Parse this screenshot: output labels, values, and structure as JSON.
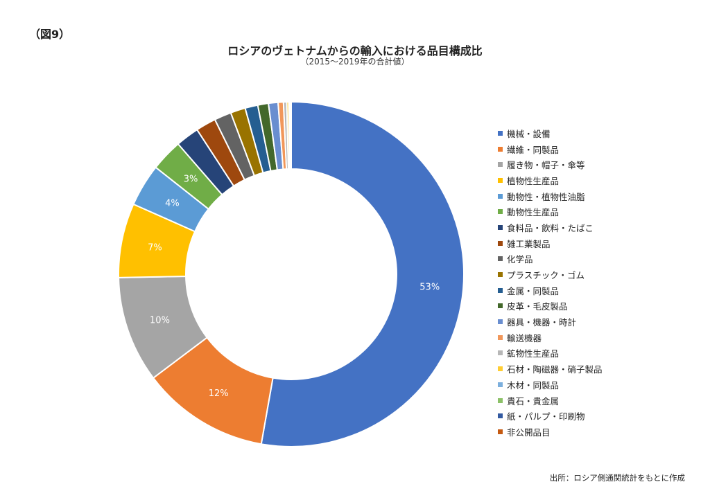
{
  "figure_label": "（図9）",
  "source": "出所：ロシア側通関統計をもとに作成",
  "chart_data": {
    "type": "donut",
    "title": "ロシアのヴェトナムからの輸入における品目構成比",
    "subtitle": "（2015～2019年の合計値）",
    "legend_position": "right",
    "unit": "%",
    "slices": [
      {
        "label": "機械・設備",
        "value": 53,
        "data_label": "53%",
        "color": "#4472C4"
      },
      {
        "label": "繊維・同製品",
        "value": 12,
        "data_label": "12%",
        "color": "#ED7D31"
      },
      {
        "label": "履き物・帽子・傘等",
        "value": 10,
        "data_label": "10%",
        "color": "#A5A5A5"
      },
      {
        "label": "植物性生産品",
        "value": 7,
        "data_label": "7%",
        "color": "#FFC000"
      },
      {
        "label": "動物性・植物性油脂",
        "value": 4,
        "data_label": "4%",
        "color": "#5B9BD5"
      },
      {
        "label": "動物性生産品",
        "value": 3,
        "data_label": "3%",
        "color": "#70AD47"
      },
      {
        "label": "食料品・飲料・たばこ",
        "value": 2.2,
        "color": "#264478"
      },
      {
        "label": "雑工業製品",
        "value": 1.9,
        "color": "#9E480E"
      },
      {
        "label": "化学品",
        "value": 1.6,
        "color": "#636363"
      },
      {
        "label": "プラスチック・ゴム",
        "value": 1.4,
        "color": "#997300"
      },
      {
        "label": "金属・同製品",
        "value": 1.2,
        "color": "#255E91"
      },
      {
        "label": "皮革・毛皮製品",
        "value": 1.0,
        "color": "#43682B"
      },
      {
        "label": "器具・機器・時計",
        "value": 0.9,
        "color": "#698ED0"
      },
      {
        "label": "輸送機器",
        "value": 0.5,
        "color": "#F1975A"
      },
      {
        "label": "鉱物性生産品",
        "value": 0.3,
        "color": "#B7B7B7"
      },
      {
        "label": "石材・陶磁器・硝子製品",
        "value": 0.2,
        "color": "#FFCD33"
      },
      {
        "label": "木材・同製品",
        "value": 0.1,
        "color": "#7CAFDD"
      },
      {
        "label": "貴石・貴金属",
        "value": 0.05,
        "color": "#8CC168"
      },
      {
        "label": "紙・パルプ・印刷物",
        "value": 0.05,
        "color": "#335AA1"
      },
      {
        "label": "非公開品目",
        "value": 0.02,
        "color": "#C55A11"
      }
    ]
  }
}
